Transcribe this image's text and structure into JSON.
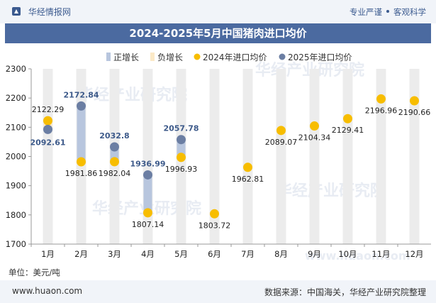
{
  "header": {
    "brand": "华经情报网",
    "tagline_left": "专业严谨",
    "tagline_right": "客观科学"
  },
  "title": "2024-2025年5月中国猪肉进口均价",
  "unit_label": "单位：美元/吨",
  "footer": {
    "url": "www.huaon.com",
    "source": "数据来源：中国海关，华经产业研究院整理"
  },
  "watermarks": [
    "华经产业研究院",
    "华经产业研究院",
    "华经产业研究院",
    "华经产业研究院",
    "www.huaon.com"
  ],
  "colors": {
    "accent": "#4b6aa0",
    "series_2024": "#f7bd00",
    "series_2025": "#6b7ea3",
    "rise_bar": "#b8c6de",
    "fall_bar": "#fbe9c7",
    "column_bg": "#ececec"
  },
  "chart_data": {
    "type": "dot-range",
    "categories": [
      "1月",
      "2月",
      "3月",
      "4月",
      "5月",
      "6月",
      "7月",
      "8月",
      "9月",
      "10月",
      "11月",
      "12月"
    ],
    "ylim": [
      1700,
      2300
    ],
    "yticks": [
      1700,
      1800,
      1900,
      2000,
      2100,
      2200,
      2300
    ],
    "legend_position": "top",
    "legend": [
      "正增长",
      "负增长",
      "2024年进口均价",
      "2025年进口均价"
    ],
    "series": [
      {
        "name": "2024年进口均价",
        "values": [
          2122.29,
          1981.86,
          1982.04,
          1807.14,
          1996.93,
          1803.72,
          1962.81,
          2089.07,
          2104.34,
          2129.41,
          2196.96,
          2190.66
        ]
      },
      {
        "name": "2025年进口均价",
        "values": [
          2092.61,
          2172.84,
          2032.8,
          1936.99,
          2057.78,
          null,
          null,
          null,
          null,
          null,
          null,
          null
        ]
      }
    ],
    "labels_2024": [
      "2122.29",
      "1981.86",
      "1982.04",
      "1807.14",
      "1996.93",
      "1803.72",
      "1962.81",
      "2089.07",
      "2104.34",
      "2129.41",
      "2196.96",
      "2190.66"
    ],
    "labels_2025": [
      "2092.61",
      "2172.84",
      "2032.8",
      "1936.99",
      "2057.78"
    ]
  }
}
